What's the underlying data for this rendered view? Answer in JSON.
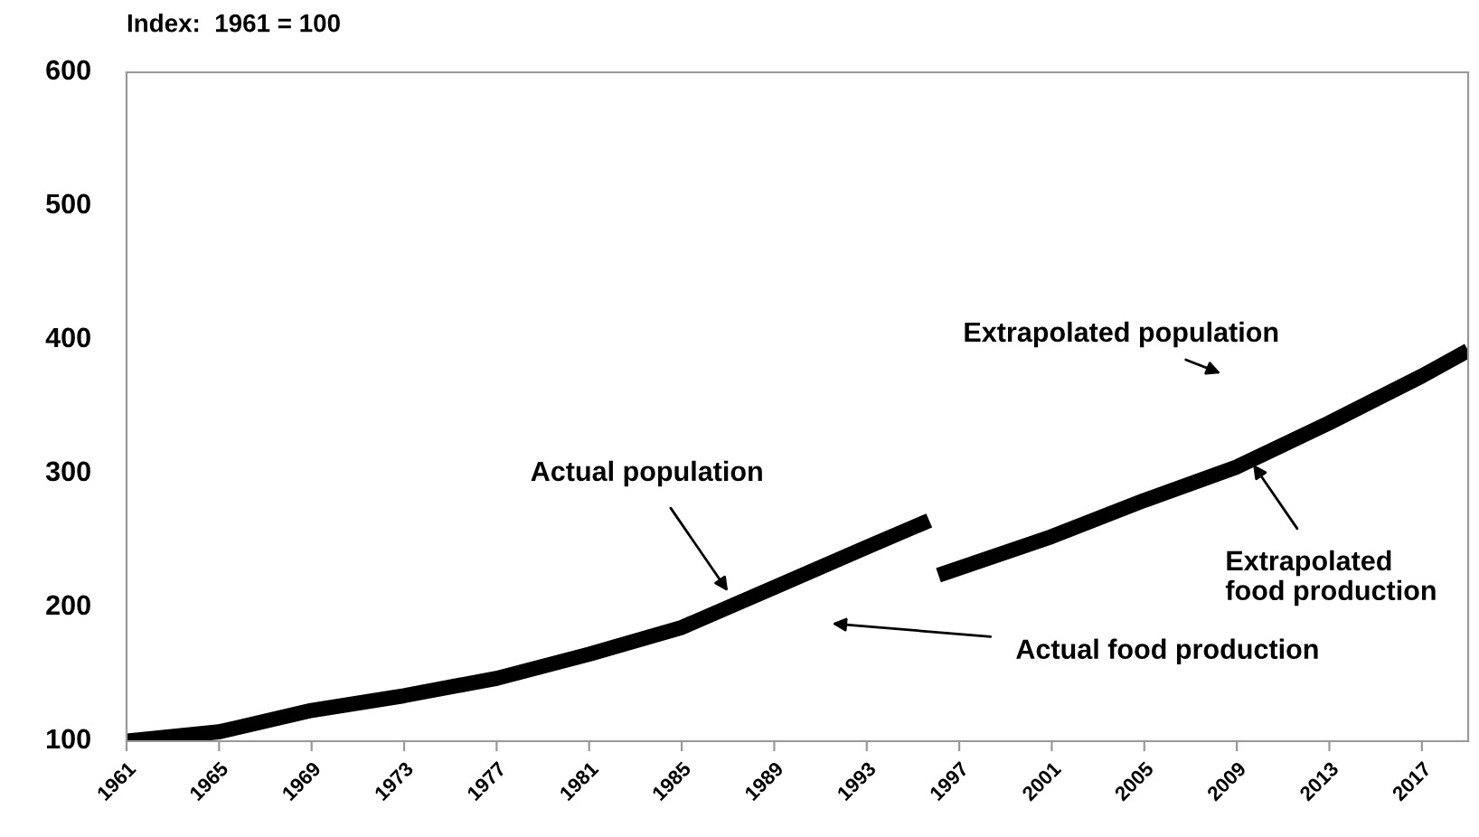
{
  "chart_data": {
    "type": "line",
    "title": "Index:  1961 = 100",
    "series": [
      {
        "color": "#000000",
        "x": [
          1961,
          1965,
          1969,
          1973,
          1977,
          1981,
          1985,
          1989,
          1993,
          1995.7
        ],
        "values": [
          100,
          107,
          123,
          134,
          147,
          165,
          185,
          215,
          245,
          265
        ]
      },
      {
        "color": "#000000",
        "x": [
          1996.1,
          2001,
          2005,
          2009,
          2013,
          2017,
          2019
        ],
        "values": [
          224,
          253,
          280,
          305,
          338,
          373,
          392
        ]
      }
    ],
    "xlim": [
      1961,
      2019
    ],
    "xticks": [
      1961,
      1965,
      1969,
      1973,
      1977,
      1981,
      1985,
      1989,
      1993,
      1997,
      2001,
      2005,
      2009,
      2013,
      2017
    ],
    "ylim": [
      100,
      600
    ],
    "yticks": [
      100,
      200,
      300,
      400,
      500,
      600
    ],
    "grid": false,
    "legend": false,
    "marker": "none",
    "line_style": "solid",
    "annotations": [
      "Actual population",
      "Extrapolated population",
      {
        "text": "Extrapolated\nfood production",
        "x": 2009.7,
        "y": 307
      },
      "Actual food production"
    ]
  }
}
